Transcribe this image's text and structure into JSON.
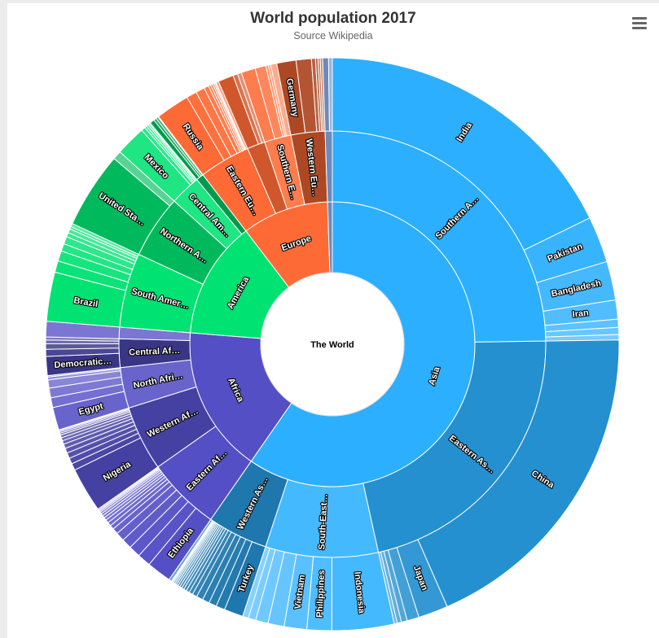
{
  "title": "World population 2017",
  "subtitle": "Source Wikipedia",
  "menu": {
    "icon": "hamburger-menu-icon"
  },
  "chart_data": {
    "type": "sunburst",
    "root": "The World",
    "continents": [
      {
        "name": "Asia",
        "value": 4504,
        "color": "#2caffe",
        "regions": [
          {
            "name": "Southern Asia",
            "value": 1870,
            "countries": [
              {
                "name": "India",
                "value": 1339
              },
              {
                "name": "Pakistan",
                "value": 197
              },
              {
                "name": "Bangladesh",
                "value": 165
              },
              {
                "name": "Iran",
                "value": 81
              },
              {
                "name": "",
                "value": 35
              },
              {
                "name": "",
                "value": 30
              },
              {
                "name": "",
                "value": 23
              }
            ]
          },
          {
            "name": "Eastern Asia",
            "value": 1644,
            "countries": [
              {
                "name": "China",
                "value": 1410
              },
              {
                "name": "Japan",
                "value": 127
              },
              {
                "name": "",
                "value": 51
              },
              {
                "name": "",
                "value": 25
              },
              {
                "name": "",
                "value": 18
              },
              {
                "name": "",
                "value": 13
              }
            ]
          },
          {
            "name": "South-Eastern Asia",
            "value": 644,
            "countries": [
              {
                "name": "Indonesia",
                "value": 264
              },
              {
                "name": "Philippines",
                "value": 105
              },
              {
                "name": "Vietnam",
                "value": 96
              },
              {
                "name": "",
                "value": 69
              },
              {
                "name": "",
                "value": 53
              },
              {
                "name": "",
                "value": 32
              },
              {
                "name": "",
                "value": 25
              }
            ]
          },
          {
            "name": "Western Asia",
            "value": 346,
            "countries": [
              {
                "name": "Turkey",
                "value": 81
              },
              {
                "name": "",
                "value": 38
              },
              {
                "name": "",
                "value": 33
              },
              {
                "name": "",
                "value": 30
              },
              {
                "name": "",
                "value": 28
              },
              {
                "name": "",
                "value": 20
              },
              {
                "name": "",
                "value": 16
              },
              {
                "name": "",
                "value": 14
              },
              {
                "name": "",
                "value": 12
              },
              {
                "name": "",
                "value": 10
              },
              {
                "name": "",
                "value": 10
              },
              {
                "name": "",
                "value": 9
              },
              {
                "name": "",
                "value": 8
              },
              {
                "name": "",
                "value": 7
              },
              {
                "name": "",
                "value": 6
              },
              {
                "name": "",
                "value": 5
              },
              {
                "name": "",
                "value": 4
              },
              {
                "name": "",
                "value": 3
              },
              {
                "name": "",
                "value": 12
              }
            ]
          }
        ]
      },
      {
        "name": "Africa",
        "value": 1256,
        "color": "#544fc5",
        "regions": [
          {
            "name": "Eastern Africa",
            "value": 422,
            "countries": [
              {
                "name": "Ethiopia",
                "value": 105
              },
              {
                "name": "",
                "value": 57
              },
              {
                "name": "",
                "value": 50
              },
              {
                "name": "",
                "value": 43
              },
              {
                "name": "",
                "value": 37
              },
              {
                "name": "",
                "value": 25
              },
              {
                "name": "",
                "value": 18
              },
              {
                "name": "",
                "value": 16
              },
              {
                "name": "",
                "value": 14
              },
              {
                "name": "",
                "value": 12
              },
              {
                "name": "",
                "value": 11
              },
              {
                "name": "",
                "value": 10
              },
              {
                "name": "",
                "value": 8
              },
              {
                "name": "",
                "value": 6
              },
              {
                "name": "",
                "value": 5
              },
              {
                "name": "",
                "value": 5
              }
            ]
          },
          {
            "name": "Western Africa",
            "value": 372,
            "countries": [
              {
                "name": "Nigeria",
                "value": 191
              },
              {
                "name": "",
                "value": 29
              },
              {
                "name": "",
                "value": 25
              },
              {
                "name": "",
                "value": 24
              },
              {
                "name": "",
                "value": 21
              },
              {
                "name": "",
                "value": 19
              },
              {
                "name": "",
                "value": 15
              },
              {
                "name": "",
                "value": 13
              },
              {
                "name": "",
                "value": 12
              },
              {
                "name": "",
                "value": 8
              },
              {
                "name": "",
                "value": 7
              },
              {
                "name": "",
                "value": 5
              },
              {
                "name": "",
                "value": 3
              }
            ]
          },
          {
            "name": "North Africa",
            "value": 233,
            "countries": [
              {
                "name": "Egypt",
                "value": 97
              },
              {
                "name": "",
                "value": 42
              },
              {
                "name": "",
                "value": 41
              },
              {
                "name": "",
                "value": 35
              },
              {
                "name": "",
                "value": 12
              },
              {
                "name": "",
                "value": 6
              }
            ]
          },
          {
            "name": "Central Africa",
            "value": 163,
            "countries": [
              {
                "name": "Democratic ...",
                "value": 81
              },
              {
                "name": "",
                "value": 30
              },
              {
                "name": "",
                "value": 24
              },
              {
                "name": "",
                "value": 15
              },
              {
                "name": "",
                "value": 13
              }
            ]
          },
          {
            "name": "",
            "value": 66,
            "countries": [
              {
                "name": "",
                "value": 66
              }
            ]
          }
        ]
      },
      {
        "name": "America",
        "value": 1008,
        "color": "#00e272",
        "regions": [
          {
            "name": "South America",
            "value": 426,
            "countries": [
              {
                "name": "Brazil",
                "value": 209
              },
              {
                "name": "",
                "value": 49
              },
              {
                "name": "",
                "value": 44
              },
              {
                "name": "",
                "value": 32
              },
              {
                "name": "",
                "value": 32
              },
              {
                "name": "",
                "value": 18
              },
              {
                "name": "",
                "value": 17
              },
              {
                "name": "",
                "value": 11
              },
              {
                "name": "",
                "value": 14
              }
            ]
          },
          {
            "name": "Northern America",
            "value": 362,
            "countries": [
              {
                "name": "United States",
                "value": 325
              },
              {
                "name": "",
                "value": 37
              }
            ]
          },
          {
            "name": "Central America",
            "value": 176,
            "countries": [
              {
                "name": "Mexico",
                "value": 129
              },
              {
                "name": "",
                "value": 17
              },
              {
                "name": "",
                "value": 9
              },
              {
                "name": "",
                "value": 9
              },
              {
                "name": "",
                "value": 7
              },
              {
                "name": "",
                "value": 5
              }
            ]
          },
          {
            "name": "",
            "value": 44,
            "countries": [
              {
                "name": "",
                "value": 20
              },
              {
                "name": "",
                "value": 11
              },
              {
                "name": "",
                "value": 10
              },
              {
                "name": "",
                "value": 3
              }
            ]
          }
        ]
      },
      {
        "name": "Europe",
        "value": 742,
        "color": "#fe6a35",
        "regions": [
          {
            "name": "Eastern Europe",
            "value": 292,
            "countries": [
              {
                "name": "Russia",
                "value": 144
              },
              {
                "name": "",
                "value": 44
              },
              {
                "name": "",
                "value": 38
              },
              {
                "name": "",
                "value": 20
              },
              {
                "name": "",
                "value": 10
              },
              {
                "name": "",
                "value": 9
              },
              {
                "name": "",
                "value": 7
              },
              {
                "name": "",
                "value": 5
              },
              {
                "name": "",
                "value": 4
              },
              {
                "name": "",
                "value": 11
              }
            ]
          },
          {
            "name": "",
            "value": 103,
            "countries": [
              {
                "name": "",
                "value": 66
              },
              {
                "name": "",
                "value": 20
              },
              {
                "name": "",
                "value": 17
              }
            ]
          },
          {
            "name": "Southern Europe",
            "value": 153,
            "countries": [
              {
                "name": "",
                "value": 60
              },
              {
                "name": "",
                "value": 46
              },
              {
                "name": "",
                "value": 11
              },
              {
                "name": "",
                "value": 10
              },
              {
                "name": "",
                "value": 26
              }
            ]
          },
          {
            "name": "Western Europe",
            "value": 194,
            "countries": [
              {
                "name": "Germany",
                "value": 82
              },
              {
                "name": "",
                "value": 65
              },
              {
                "name": "",
                "value": 17
              },
              {
                "name": "",
                "value": 11
              },
              {
                "name": "",
                "value": 9
              },
              {
                "name": "",
                "value": 10
              }
            ]
          }
        ]
      },
      {
        "name": "",
        "value": 41,
        "color": "#6b8abc",
        "regions": [
          {
            "name": "",
            "value": 41,
            "countries": [
              {
                "name": "",
                "value": 25
              },
              {
                "name": "",
                "value": 16
              }
            ]
          }
        ]
      }
    ]
  }
}
